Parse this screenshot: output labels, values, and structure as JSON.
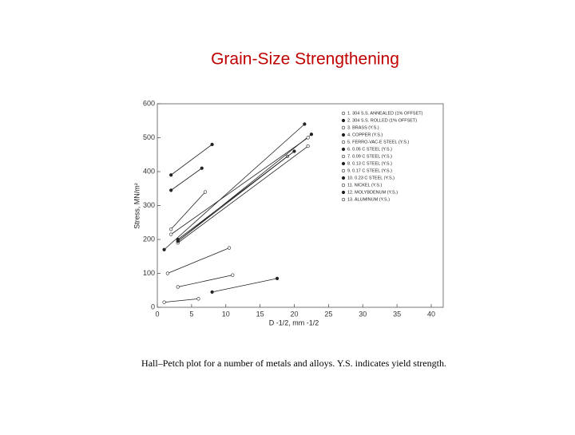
{
  "title": "Grain-Size Strengthening",
  "caption": "Hall–Petch plot for a number of metals and alloys. Y.S. indicates yield strength.",
  "chart_data": {
    "type": "line",
    "xlabel": "D -1/2, mm -1/2",
    "ylabel": "Stress, MN/m²",
    "xlim": [
      0,
      40
    ],
    "xticks": [
      0,
      5,
      10,
      15,
      20,
      25,
      30,
      35,
      40
    ],
    "ylim": [
      0,
      600
    ],
    "yticks": [
      0,
      100,
      200,
      300,
      400,
      500,
      600
    ],
    "color": "#222222",
    "series": [
      {
        "name": "1. 304 S.S. ANNEALED (1% OFFSET)",
        "x": [
          2,
          7
        ],
        "values": [
          230,
          340
        ]
      },
      {
        "name": "2. 304 S.S. ROLLED (1% OFFSET)",
        "x": [
          2,
          8
        ],
        "values": [
          390,
          480
        ]
      },
      {
        "name": "3. BRASS (Y.S.)",
        "x": [
          1.5,
          10.5
        ],
        "values": [
          100,
          175
        ]
      },
      {
        "name": "4. COPPER (Y.S.)",
        "x": [
          8,
          17.5
        ],
        "values": [
          45,
          85
        ]
      },
      {
        "name": "5. FERRO-VAC-E STEEL (Y.S.)",
        "x": [
          3,
          19
        ],
        "values": [
          195,
          445
        ]
      },
      {
        "name": "6. 0.05 C STEEL (Y.S.)",
        "x": [
          3,
          20
        ],
        "values": [
          200,
          460
        ]
      },
      {
        "name": "7. 0.09 C STEEL (Y.S.)",
        "x": [
          3,
          22
        ],
        "values": [
          190,
          475
        ]
      },
      {
        "name": "8. 0.13 C STEEL (Y.S.)",
        "x": [
          3,
          22.5
        ],
        "values": [
          195,
          510
        ]
      },
      {
        "name": "9. 0.17 C STEEL (Y.S.)",
        "x": [
          2,
          22
        ],
        "values": [
          215,
          500
        ]
      },
      {
        "name": "10. 0.23 C STEEL (Y.S.)",
        "x": [
          1,
          21.5
        ],
        "values": [
          170,
          540
        ]
      },
      {
        "name": "11. NICKEL (Y.S.)",
        "x": [
          3,
          11
        ],
        "values": [
          60,
          95
        ]
      },
      {
        "name": "12. MOLYBDENUM (Y.S.)",
        "x": [
          2,
          6.5
        ],
        "values": [
          345,
          410
        ]
      },
      {
        "name": "13. ALUMINUM (Y.S.)",
        "x": [
          1,
          6
        ],
        "values": [
          15,
          25
        ]
      }
    ]
  }
}
